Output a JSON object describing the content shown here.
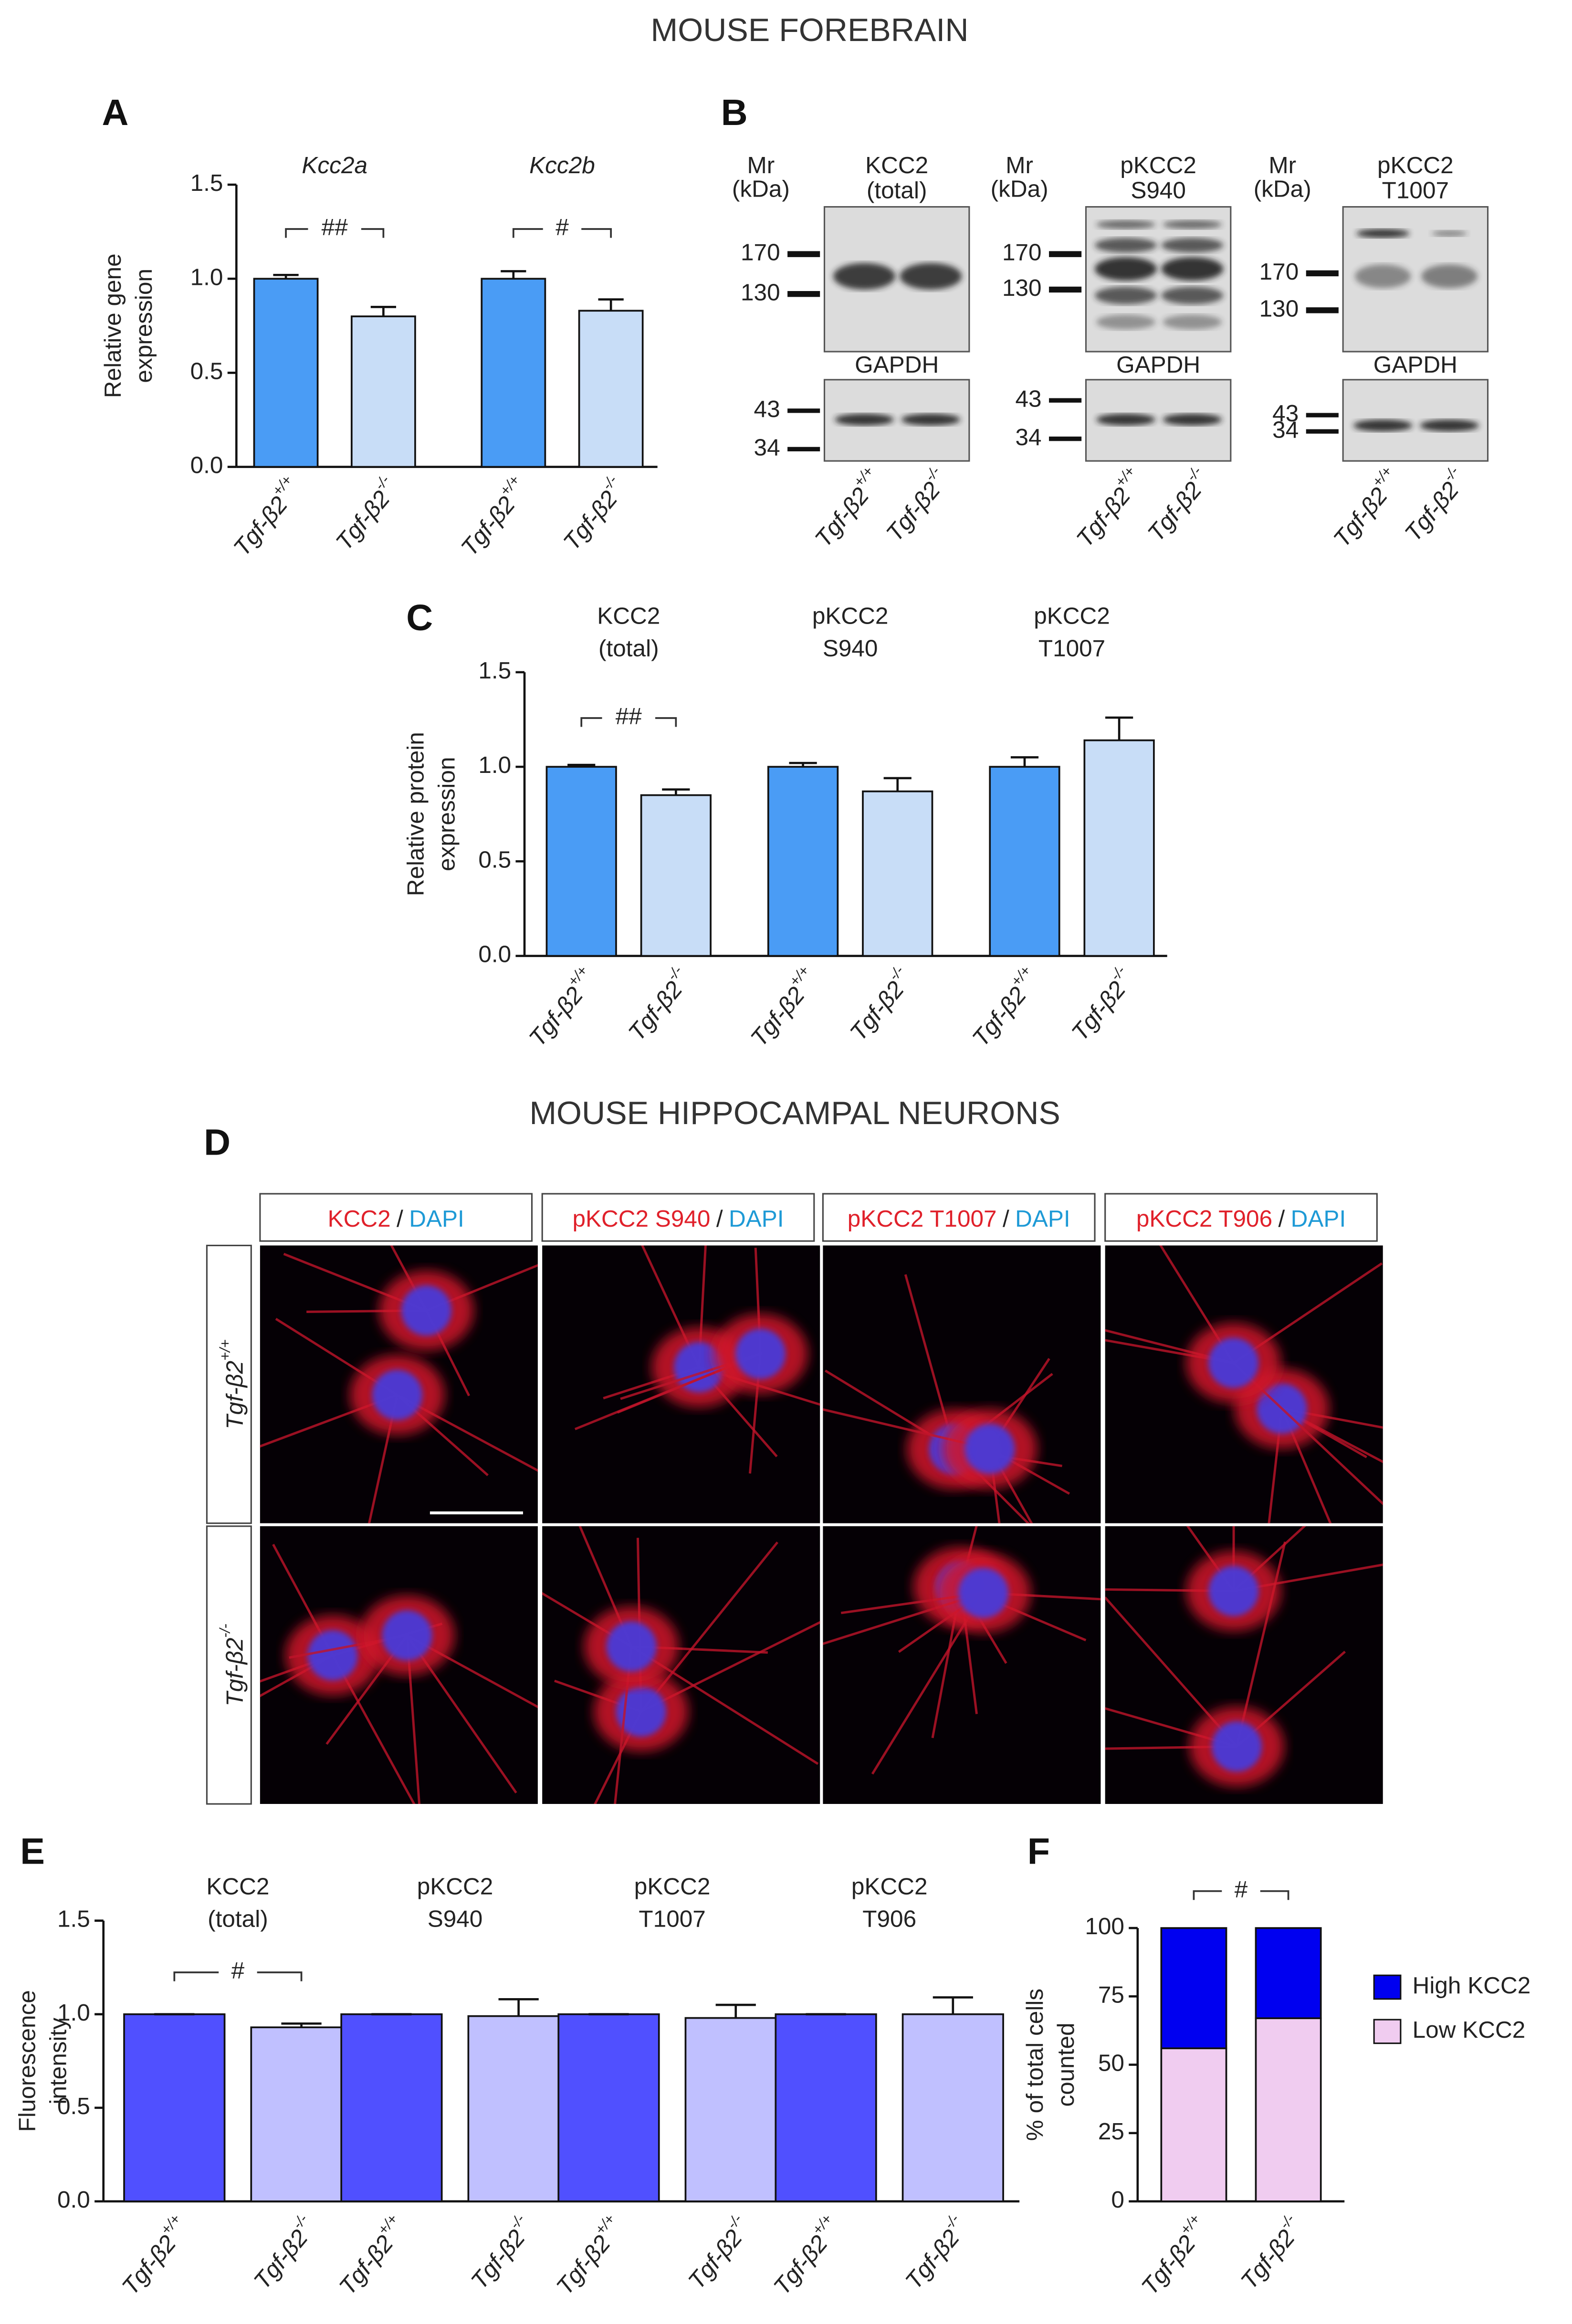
{
  "figure": {
    "title": "MOUSE FOREBRAIN",
    "section_title": "MOUSE HIPPOCAMPAL NEURONS",
    "panel_labels": [
      "A",
      "B",
      "C",
      "D",
      "E",
      "F"
    ],
    "blots": {
      "mr": [
        "Mr",
        "(kDa)"
      ],
      "loading_control": "GAPDH",
      "lanes": [
        {
          "base": "Tgf-β2",
          "sup": "+/+"
        },
        {
          "base": "Tgf-β2",
          "sup": "-/-"
        }
      ],
      "panels": [
        {
          "target": [
            "KCC2",
            "(total)"
          ],
          "markers": [
            170,
            130
          ],
          "control_markers": [
            43,
            34
          ]
        },
        {
          "target": [
            "pKCC2",
            "S940"
          ],
          "markers": [
            170,
            130
          ],
          "control_markers": [
            43,
            34
          ]
        },
        {
          "target": [
            "pKCC2",
            "T1007"
          ],
          "markers": [
            170,
            130
          ],
          "control_markers": [
            43,
            34
          ]
        }
      ]
    },
    "microscopy": {
      "separator": "/",
      "columns": [
        {
          "antibody": "KCC2",
          "counterstain": "DAPI"
        },
        {
          "antibody": "pKCC2 S940",
          "counterstain": "DAPI"
        },
        {
          "antibody": "pKCC2 T1007",
          "counterstain": "DAPI"
        },
        {
          "antibody": "pKCC2 T906",
          "counterstain": "DAPI"
        }
      ],
      "rows": [
        {
          "base": "Tgf-β2",
          "sup": "+/+"
        },
        {
          "base": "Tgf-β2",
          "sup": "-/-"
        }
      ]
    }
  },
  "chart_data": [
    {
      "type": "bar",
      "ylabel": [
        "Relative gene",
        "expression"
      ],
      "groups": [
        [
          "Kcc2a"
        ],
        [
          "Kcc2b"
        ]
      ],
      "group_italic": true,
      "categories": [
        {
          "base": "Tgf-β2",
          "sup": "+/+"
        },
        {
          "base": "Tgf-β2",
          "sup": "-/-"
        },
        {
          "base": "Tgf-β2",
          "sup": "+/+"
        },
        {
          "base": "Tgf-β2",
          "sup": "-/-"
        }
      ],
      "values": [
        1.0,
        0.8,
        1.0,
        0.83
      ],
      "errors": [
        0.02,
        0.05,
        0.04,
        0.06
      ],
      "bar_colors": [
        "#4a9cf5",
        "#c8ddf7"
      ],
      "ylim": [
        0,
        1.5
      ],
      "yticks": [
        {
          "value": 0,
          "label": "0.0"
        },
        {
          "value": 0.5,
          "label": "0.5"
        },
        {
          "value": 1,
          "label": "1.0"
        },
        {
          "value": 1.5,
          "label": "1.5"
        }
      ],
      "annotations": [
        {
          "text": "##",
          "from": 0,
          "to": 1
        },
        {
          "text": "#",
          "from": 2,
          "to": 3
        }
      ]
    },
    {
      "type": "bar",
      "ylabel": [
        "Relative protein",
        "expression"
      ],
      "groups": [
        [
          "KCC2",
          "(total)"
        ],
        [
          "pKCC2",
          "S940"
        ],
        [
          "pKCC2",
          "T1007"
        ]
      ],
      "group_italic": false,
      "categories": [
        {
          "base": "Tgf-β2",
          "sup": "+/+"
        },
        {
          "base": "Tgf-β2",
          "sup": "-/-"
        },
        {
          "base": "Tgf-β2",
          "sup": "+/+"
        },
        {
          "base": "Tgf-β2",
          "sup": "-/-"
        },
        {
          "base": "Tgf-β2",
          "sup": "+/+"
        },
        {
          "base": "Tgf-β2",
          "sup": "-/-"
        }
      ],
      "values": [
        1.0,
        0.85,
        1.0,
        0.87,
        1.0,
        1.14
      ],
      "errors": [
        0.01,
        0.03,
        0.02,
        0.07,
        0.05,
        0.12
      ],
      "bar_colors": [
        "#4a9cf5",
        "#c8ddf7"
      ],
      "ylim": [
        0,
        1.5
      ],
      "yticks": [
        {
          "value": 0,
          "label": "0.0"
        },
        {
          "value": 0.5,
          "label": "0.5"
        },
        {
          "value": 1,
          "label": "1.0"
        },
        {
          "value": 1.5,
          "label": "1.5"
        }
      ],
      "annotations": [
        {
          "text": "##",
          "from": 0,
          "to": 1
        }
      ]
    },
    {
      "type": "bar",
      "ylabel": [
        "Fluorescence",
        "intensity"
      ],
      "groups": [
        [
          "KCC2",
          "(total)"
        ],
        [
          "pKCC2",
          "S940"
        ],
        [
          "pKCC2",
          "T1007"
        ],
        [
          "pKCC2",
          "T906"
        ]
      ],
      "group_italic": false,
      "categories": [
        {
          "base": "Tgf-β2",
          "sup": "+/+"
        },
        {
          "base": "Tgf-β2",
          "sup": "-/-"
        },
        {
          "base": "Tgf-β2",
          "sup": "+/+"
        },
        {
          "base": "Tgf-β2",
          "sup": "-/-"
        },
        {
          "base": "Tgf-β2",
          "sup": "+/+"
        },
        {
          "base": "Tgf-β2",
          "sup": "-/-"
        },
        {
          "base": "Tgf-β2",
          "sup": "+/+"
        },
        {
          "base": "Tgf-β2",
          "sup": "-/-"
        }
      ],
      "values": [
        1.0,
        0.93,
        1.0,
        0.99,
        1.0,
        0.98,
        1.0,
        1.0
      ],
      "errors": [
        0,
        0.02,
        0,
        0.09,
        0,
        0.07,
        0,
        0.09
      ],
      "bar_colors": [
        "#5050ff",
        "#c0c0ff"
      ],
      "ylim": [
        0,
        1.5
      ],
      "yticks": [
        {
          "value": 0,
          "label": "0.0"
        },
        {
          "value": 0.5,
          "label": "0.5"
        },
        {
          "value": 1,
          "label": "1.0"
        },
        {
          "value": 1.5,
          "label": "1.5"
        }
      ],
      "annotations": [
        {
          "text": "#",
          "from": 0,
          "to": 1
        }
      ]
    },
    {
      "type": "stacked_bar",
      "ylabel": [
        "% of total cells",
        "counted"
      ],
      "categories": [
        {
          "base": "Tgf-β2",
          "sup": "+/+"
        },
        {
          "base": "Tgf-β2",
          "sup": "-/-"
        }
      ],
      "series": [
        {
          "name": "Low KCC2",
          "color": "#f0ccf0",
          "values": [
            56,
            67
          ]
        },
        {
          "name": "High KCC2",
          "color": "#0000f0",
          "values": [
            44,
            33
          ]
        }
      ],
      "ylim": [
        0,
        100
      ],
      "yticks": [
        0,
        25,
        50,
        75,
        100
      ],
      "legend": "right",
      "annotations": [
        {
          "text": "#",
          "from": 0,
          "to": 1
        }
      ]
    }
  ]
}
